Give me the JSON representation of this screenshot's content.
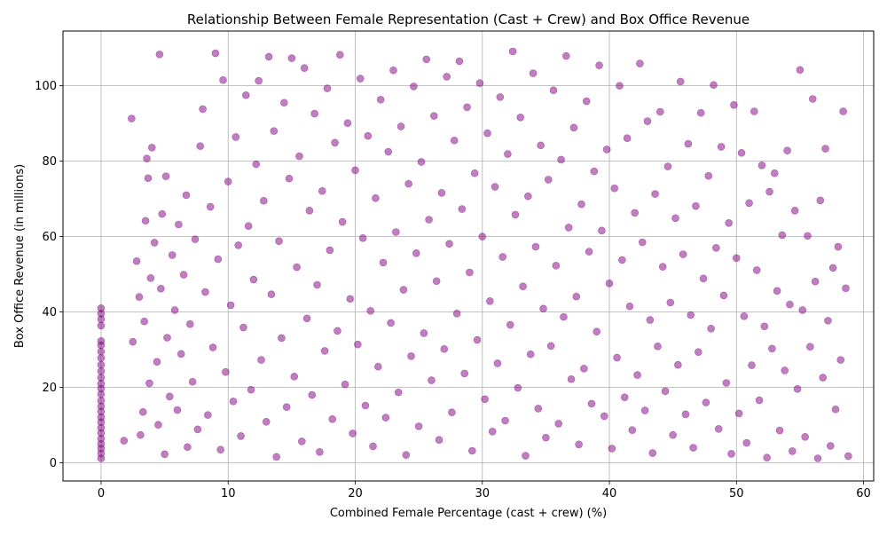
{
  "chart_data": {
    "type": "scatter",
    "title": "Relationship Between Female Representation (Cast + Crew) and Box Office Revenue",
    "xlabel": "Combined Female Percentage (cast + crew) (%)",
    "ylabel": "Box Office Revenue (in millions)",
    "xlim": [
      -3,
      60.8
    ],
    "ylim": [
      -4.8,
      114.5
    ],
    "xticks": [
      0,
      10,
      20,
      30,
      40,
      50,
      60
    ],
    "yticks": [
      0,
      20,
      40,
      60,
      80,
      100
    ],
    "xtick_labels": [
      "0",
      "10",
      "20",
      "30",
      "40",
      "50",
      "60"
    ],
    "ytick_labels": [
      "0",
      "20",
      "40",
      "60",
      "80",
      "100"
    ],
    "grid": true,
    "legend": "none",
    "marker_color": "#800080",
    "marker_alpha": 0.5,
    "points": [
      [
        0,
        1.2
      ],
      [
        0,
        2.5
      ],
      [
        0,
        3.8
      ],
      [
        0,
        5.0
      ],
      [
        0,
        6.4
      ],
      [
        0,
        7.9
      ],
      [
        0,
        9.3
      ],
      [
        0,
        10.8
      ],
      [
        0,
        12.1
      ],
      [
        0,
        13.6
      ],
      [
        0,
        15.0
      ],
      [
        0,
        16.5
      ],
      [
        0,
        18.2
      ],
      [
        0,
        19.7
      ],
      [
        0,
        21.0
      ],
      [
        0,
        22.6
      ],
      [
        0,
        24.3
      ],
      [
        0,
        26.0
      ],
      [
        0,
        27.8
      ],
      [
        0,
        29.5
      ],
      [
        0,
        31.2
      ],
      [
        0,
        32.3
      ],
      [
        0,
        36.4
      ],
      [
        0,
        38.1
      ],
      [
        0,
        39.6
      ],
      [
        0,
        41.0
      ],
      [
        1.8,
        5.9
      ],
      [
        2.4,
        91.3
      ],
      [
        2.5,
        32.1
      ],
      [
        2.8,
        53.5
      ],
      [
        3.0,
        44.0
      ],
      [
        3.1,
        7.4
      ],
      [
        3.3,
        13.5
      ],
      [
        3.4,
        37.5
      ],
      [
        3.5,
        64.2
      ],
      [
        3.6,
        80.7
      ],
      [
        3.7,
        75.5
      ],
      [
        3.8,
        21.1
      ],
      [
        3.9,
        49.0
      ],
      [
        4.0,
        83.6
      ],
      [
        4.2,
        58.4
      ],
      [
        4.4,
        26.8
      ],
      [
        4.5,
        10.1
      ],
      [
        4.6,
        108.3
      ],
      [
        4.7,
        46.2
      ],
      [
        4.8,
        66.0
      ],
      [
        5.0,
        2.3
      ],
      [
        5.1,
        76.0
      ],
      [
        5.2,
        33.2
      ],
      [
        5.4,
        17.6
      ],
      [
        5.6,
        55.1
      ],
      [
        5.8,
        40.5
      ],
      [
        6.0,
        14.0
      ],
      [
        6.1,
        63.2
      ],
      [
        6.3,
        28.9
      ],
      [
        6.5,
        49.9
      ],
      [
        6.7,
        71.0
      ],
      [
        6.8,
        4.2
      ],
      [
        7.0,
        36.8
      ],
      [
        7.2,
        21.5
      ],
      [
        7.4,
        59.3
      ],
      [
        7.6,
        8.9
      ],
      [
        7.8,
        84.0
      ],
      [
        8.0,
        93.8
      ],
      [
        8.2,
        45.3
      ],
      [
        8.4,
        12.7
      ],
      [
        8.6,
        67.9
      ],
      [
        8.8,
        30.6
      ],
      [
        9.0,
        108.6
      ],
      [
        9.2,
        54.0
      ],
      [
        9.4,
        3.5
      ],
      [
        9.6,
        101.5
      ],
      [
        9.8,
        24.1
      ],
      [
        10.0,
        74.6
      ],
      [
        10.2,
        41.8
      ],
      [
        10.4,
        16.3
      ],
      [
        10.6,
        86.4
      ],
      [
        10.8,
        57.7
      ],
      [
        11.0,
        7.1
      ],
      [
        11.2,
        35.9
      ],
      [
        11.4,
        97.5
      ],
      [
        11.6,
        62.8
      ],
      [
        11.8,
        19.4
      ],
      [
        12.0,
        48.6
      ],
      [
        12.2,
        79.2
      ],
      [
        12.4,
        101.3
      ],
      [
        12.6,
        27.3
      ],
      [
        12.8,
        69.5
      ],
      [
        13.0,
        10.9
      ],
      [
        13.2,
        107.7
      ],
      [
        13.4,
        44.7
      ],
      [
        13.6,
        88.0
      ],
      [
        13.8,
        1.6
      ],
      [
        14.0,
        58.8
      ],
      [
        14.2,
        33.1
      ],
      [
        14.4,
        95.5
      ],
      [
        14.6,
        14.8
      ],
      [
        14.8,
        75.4
      ],
      [
        15.0,
        107.3
      ],
      [
        15.2,
        22.9
      ],
      [
        15.4,
        51.9
      ],
      [
        15.6,
        81.3
      ],
      [
        15.8,
        5.7
      ],
      [
        16.0,
        104.7
      ],
      [
        16.2,
        38.3
      ],
      [
        16.4,
        66.9
      ],
      [
        16.6,
        18.0
      ],
      [
        16.8,
        92.6
      ],
      [
        17.0,
        47.2
      ],
      [
        17.2,
        2.9
      ],
      [
        17.4,
        72.1
      ],
      [
        17.6,
        29.7
      ],
      [
        17.8,
        99.3
      ],
      [
        18.0,
        56.4
      ],
      [
        18.2,
        11.6
      ],
      [
        18.4,
        84.9
      ],
      [
        18.6,
        35.0
      ],
      [
        18.8,
        108.2
      ],
      [
        19.0,
        63.9
      ],
      [
        19.2,
        20.8
      ],
      [
        19.4,
        90.1
      ],
      [
        19.6,
        43.5
      ],
      [
        19.8,
        7.8
      ],
      [
        20.0,
        77.6
      ],
      [
        20.2,
        31.4
      ],
      [
        20.4,
        101.9
      ],
      [
        20.6,
        59.6
      ],
      [
        20.8,
        15.2
      ],
      [
        21.0,
        86.7
      ],
      [
        21.2,
        40.3
      ],
      [
        21.4,
        4.4
      ],
      [
        21.6,
        70.2
      ],
      [
        21.8,
        25.5
      ],
      [
        22.0,
        96.3
      ],
      [
        22.2,
        53.1
      ],
      [
        22.4,
        12.0
      ],
      [
        22.6,
        82.5
      ],
      [
        22.8,
        37.1
      ],
      [
        23.0,
        104.1
      ],
      [
        23.2,
        61.2
      ],
      [
        23.4,
        18.7
      ],
      [
        23.6,
        89.2
      ],
      [
        23.8,
        45.9
      ],
      [
        24.0,
        2.1
      ],
      [
        24.2,
        74.0
      ],
      [
        24.4,
        28.3
      ],
      [
        24.6,
        99.8
      ],
      [
        24.8,
        55.6
      ],
      [
        25.0,
        9.7
      ],
      [
        25.2,
        79.8
      ],
      [
        25.4,
        34.4
      ],
      [
        25.6,
        107.0
      ],
      [
        25.8,
        64.5
      ],
      [
        26.0,
        21.9
      ],
      [
        26.2,
        92.0
      ],
      [
        26.4,
        48.2
      ],
      [
        26.6,
        6.1
      ],
      [
        26.8,
        71.6
      ],
      [
        27.0,
        30.2
      ],
      [
        27.2,
        102.4
      ],
      [
        27.4,
        58.1
      ],
      [
        27.6,
        13.4
      ],
      [
        27.8,
        85.5
      ],
      [
        28.0,
        39.6
      ],
      [
        28.2,
        106.5
      ],
      [
        28.4,
        67.3
      ],
      [
        28.6,
        23.7
      ],
      [
        28.8,
        94.3
      ],
      [
        29.0,
        50.5
      ],
      [
        29.2,
        3.2
      ],
      [
        29.4,
        76.8
      ],
      [
        29.6,
        32.6
      ],
      [
        29.8,
        100.7
      ],
      [
        30.0,
        60.0
      ],
      [
        30.2,
        16.9
      ],
      [
        30.4,
        87.4
      ],
      [
        30.6,
        42.9
      ],
      [
        30.8,
        8.3
      ],
      [
        31.0,
        73.2
      ],
      [
        31.2,
        26.4
      ],
      [
        31.4,
        97.0
      ],
      [
        31.6,
        54.6
      ],
      [
        31.8,
        11.2
      ],
      [
        32.0,
        81.9
      ],
      [
        32.2,
        36.6
      ],
      [
        32.4,
        109.1
      ],
      [
        32.6,
        65.8
      ],
      [
        32.8,
        19.9
      ],
      [
        33.0,
        91.6
      ],
      [
        33.2,
        46.8
      ],
      [
        33.4,
        1.9
      ],
      [
        33.6,
        70.7
      ],
      [
        33.8,
        28.8
      ],
      [
        34.0,
        103.3
      ],
      [
        34.2,
        57.3
      ],
      [
        34.4,
        14.4
      ],
      [
        34.6,
        84.2
      ],
      [
        34.8,
        40.9
      ],
      [
        35.0,
        6.7
      ],
      [
        35.2,
        75.1
      ],
      [
        35.4,
        31.0
      ],
      [
        35.6,
        98.8
      ],
      [
        35.8,
        52.3
      ],
      [
        36.0,
        10.4
      ],
      [
        36.2,
        80.4
      ],
      [
        36.4,
        38.7
      ],
      [
        36.6,
        107.9
      ],
      [
        36.8,
        62.4
      ],
      [
        37.0,
        22.2
      ],
      [
        37.2,
        88.9
      ],
      [
        37.4,
        44.1
      ],
      [
        37.6,
        4.9
      ],
      [
        37.8,
        68.6
      ],
      [
        38.0,
        25.0
      ],
      [
        38.2,
        95.9
      ],
      [
        38.4,
        56.0
      ],
      [
        38.6,
        15.7
      ],
      [
        38.8,
        77.3
      ],
      [
        39.0,
        34.8
      ],
      [
        39.2,
        105.4
      ],
      [
        39.4,
        61.6
      ],
      [
        39.6,
        12.4
      ],
      [
        39.8,
        83.1
      ],
      [
        40.0,
        47.6
      ],
      [
        40.2,
        3.8
      ],
      [
        40.4,
        72.8
      ],
      [
        40.6,
        27.9
      ],
      [
        40.8,
        100.0
      ],
      [
        41.0,
        53.8
      ],
      [
        41.2,
        17.4
      ],
      [
        41.4,
        86.1
      ],
      [
        41.6,
        41.5
      ],
      [
        41.8,
        8.7
      ],
      [
        42.0,
        66.3
      ],
      [
        42.2,
        23.3
      ],
      [
        42.4,
        105.9
      ],
      [
        42.6,
        58.5
      ],
      [
        42.8,
        13.9
      ],
      [
        43.0,
        90.6
      ],
      [
        43.2,
        37.9
      ],
      [
        43.4,
        2.6
      ],
      [
        43.6,
        71.3
      ],
      [
        43.8,
        30.9
      ],
      [
        44.0,
        93.1
      ],
      [
        44.2,
        52.0
      ],
      [
        44.4,
        19.0
      ],
      [
        44.6,
        78.6
      ],
      [
        44.8,
        42.5
      ],
      [
        45.0,
        7.4
      ],
      [
        45.2,
        64.9
      ],
      [
        45.4,
        26.0
      ],
      [
        45.6,
        101.1
      ],
      [
        45.8,
        55.3
      ],
      [
        46.0,
        12.9
      ],
      [
        46.2,
        84.6
      ],
      [
        46.4,
        39.2
      ],
      [
        46.6,
        4.0
      ],
      [
        46.8,
        68.1
      ],
      [
        47.0,
        29.4
      ],
      [
        47.2,
        92.8
      ],
      [
        47.4,
        48.9
      ],
      [
        47.6,
        16.0
      ],
      [
        47.8,
        76.1
      ],
      [
        48.0,
        35.6
      ],
      [
        48.2,
        100.2
      ],
      [
        48.4,
        57.0
      ],
      [
        48.6,
        9.0
      ],
      [
        48.8,
        83.8
      ],
      [
        49.0,
        44.4
      ],
      [
        49.2,
        21.2
      ],
      [
        49.4,
        63.6
      ],
      [
        49.6,
        2.4
      ],
      [
        49.8,
        94.9
      ],
      [
        50.0,
        54.3
      ],
      [
        50.2,
        13.1
      ],
      [
        50.4,
        82.2
      ],
      [
        50.6,
        38.9
      ],
      [
        50.8,
        5.3
      ],
      [
        51.0,
        68.9
      ],
      [
        51.2,
        25.9
      ],
      [
        51.4,
        93.2
      ],
      [
        51.6,
        51.1
      ],
      [
        51.8,
        16.6
      ],
      [
        52.0,
        78.9
      ],
      [
        52.2,
        36.2
      ],
      [
        52.4,
        1.4
      ],
      [
        52.6,
        71.9
      ],
      [
        52.8,
        30.3
      ],
      [
        53.0,
        76.8
      ],
      [
        53.2,
        45.6
      ],
      [
        53.4,
        8.6
      ],
      [
        53.6,
        60.4
      ],
      [
        53.8,
        24.5
      ],
      [
        54.0,
        82.8
      ],
      [
        54.2,
        42.0
      ],
      [
        54.4,
        3.1
      ],
      [
        54.6,
        66.9
      ],
      [
        54.8,
        19.6
      ],
      [
        55.0,
        104.2
      ],
      [
        55.2,
        40.5
      ],
      [
        55.4,
        6.9
      ],
      [
        55.6,
        60.2
      ],
      [
        55.8,
        30.8
      ],
      [
        56.0,
        96.5
      ],
      [
        56.2,
        48.1
      ],
      [
        56.4,
        1.2
      ],
      [
        56.6,
        69.6
      ],
      [
        56.8,
        22.6
      ],
      [
        57.0,
        83.3
      ],
      [
        57.2,
        37.7
      ],
      [
        57.4,
        4.5
      ],
      [
        57.6,
        51.7
      ],
      [
        57.8,
        14.2
      ],
      [
        58.0,
        57.3
      ],
      [
        58.2,
        27.3
      ],
      [
        58.4,
        93.2
      ],
      [
        58.6,
        46.3
      ],
      [
        58.8,
        1.8
      ]
    ]
  }
}
